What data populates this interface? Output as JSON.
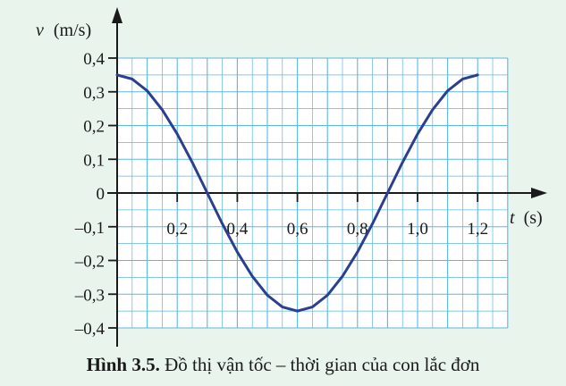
{
  "chart_data": {
    "type": "line",
    "ylabel_var": "v",
    "ylabel_unit": "(m/s)",
    "xlabel_var": "t",
    "xlabel_unit": "(s)",
    "xlim": [
      0,
      1.3
    ],
    "ylim": [
      -0.4,
      0.4
    ],
    "grid": true,
    "x_ticks": [
      "0,2",
      "0,4",
      "0,6",
      "0,8",
      "1,0",
      "1,2"
    ],
    "x_tick_values": [
      0.2,
      0.4,
      0.6,
      0.8,
      1.0,
      1.2
    ],
    "y_ticks": [
      "0,4",
      "0,3",
      "0,2",
      "0,1",
      "0",
      "–0,1",
      "–0,2",
      "–0,3",
      "–0,4"
    ],
    "y_tick_values": [
      0.4,
      0.3,
      0.2,
      0.1,
      0,
      -0.1,
      -0.2,
      -0.3,
      -0.4
    ],
    "series": [
      {
        "color": "#2b3f8f",
        "x": [
          0,
          0.05,
          0.1,
          0.15,
          0.2,
          0.25,
          0.3,
          0.35,
          0.4,
          0.45,
          0.5,
          0.55,
          0.6,
          0.65,
          0.7,
          0.75,
          0.8,
          0.85,
          0.9,
          0.95,
          1.0,
          1.05,
          1.1,
          1.15,
          1.2
        ],
        "y": [
          0.35,
          0.338,
          0.303,
          0.247,
          0.175,
          0.091,
          0,
          -0.091,
          -0.175,
          -0.247,
          -0.303,
          -0.338,
          -0.35,
          -0.338,
          -0.303,
          -0.247,
          -0.175,
          -0.091,
          0,
          0.091,
          0.175,
          0.247,
          0.303,
          0.338,
          0.35
        ]
      }
    ],
    "colors": {
      "background": "#e8f4ec",
      "plot_area": "#ffffff",
      "grid": "#5bb7e0",
      "axis": "#1a1a1a",
      "curve": "#2b3f8f"
    }
  },
  "caption": {
    "label": "Hình 3.5.",
    "text": "Đồ thị vận tốc – thời gian của con lắc đơn"
  }
}
